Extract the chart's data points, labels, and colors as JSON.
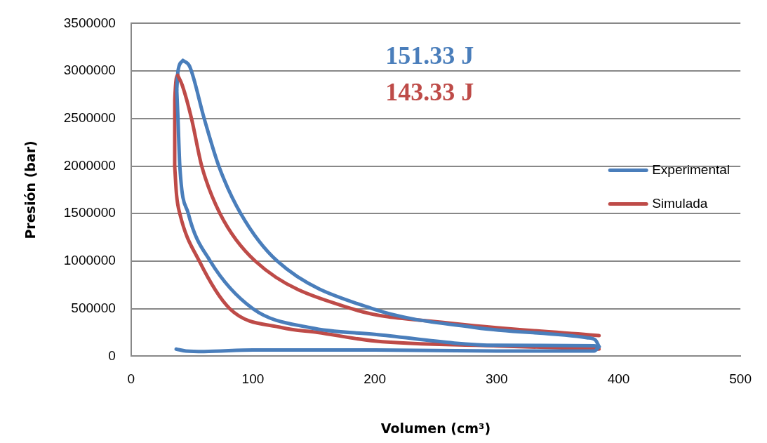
{
  "chart_data": {
    "type": "line",
    "xlabel": "Volumen (cm³)",
    "ylabel": "Presión (bar)",
    "xlim": [
      0,
      500
    ],
    "xticks": [
      0,
      100,
      200,
      300,
      400,
      500
    ],
    "ylim": [
      0,
      3500000
    ],
    "yticks": [
      0,
      500000,
      1000000,
      1500000,
      2000000,
      2500000,
      3000000,
      3500000
    ],
    "grid": "y",
    "legend": "right",
    "marker": "none",
    "line_style": "solid",
    "annotations": [
      "151.33 J",
      "143.33 J"
    ],
    "series": [
      {
        "name": "Experimental",
        "color": "#4a7ebb",
        "x": [
          42.6,
          48,
          60,
          72,
          90,
          120,
          198,
          283,
          374,
          381,
          384
        ],
        "values": [
          3110000,
          3050000,
          2500000,
          2000000,
          1500000,
          1000000,
          500000,
          300000,
          195000,
          170000,
          100000
        ]
      },
      {
        "name": "Simulada",
        "color": "#be4b48",
        "x": [
          38.3,
          42,
          49.6,
          58,
          73,
          102,
          181,
          260,
          384
        ],
        "values": [
          2955000,
          2850000,
          2500000,
          2000000,
          1500000,
          1000000,
          500000,
          350000,
          217000
        ]
      },
      {
        "color": "#4a7ebb",
        "x": [
          384,
          380,
          300,
          200,
          147,
          100,
          65,
          47,
          40,
          38.5,
          37.5
        ],
        "values": [
          100000,
          110000,
          115000,
          230000,
          300000,
          500000,
          1000000,
          1500000,
          2000000,
          2500000,
          2800000
        ]
      },
      {
        "color": "#4a7ebb",
        "x": [
          37.5,
          38.5,
          42.6
        ],
        "values": [
          2800000,
          3000000,
          3110000
        ]
      },
      {
        "color": "#4a7ebb",
        "x": [
          384,
          380,
          300,
          200,
          100,
          60,
          45,
          37
        ],
        "values": [
          100000,
          55000,
          55000,
          65000,
          65000,
          50000,
          55000,
          75000
        ]
      },
      {
        "color": "#be4b48",
        "x": [
          384,
          300,
          200,
          153,
          124,
          81,
          56,
          40,
          37.3,
          35.8
        ],
        "values": [
          75000,
          109000,
          160000,
          250000,
          300000,
          500000,
          1000000,
          1500000,
          1700000,
          2000000
        ]
      },
      {
        "color": "#be4b48",
        "x": [
          35.8,
          35.9,
          38.3
        ],
        "values": [
          2000000,
          2700000,
          2955000
        ]
      }
    ]
  }
}
